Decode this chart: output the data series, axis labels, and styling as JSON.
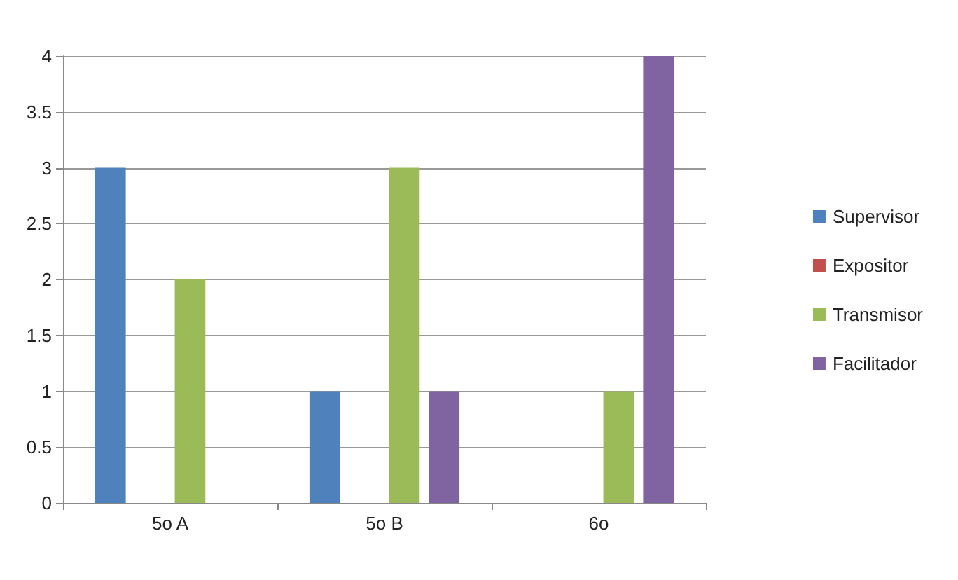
{
  "chart_data": {
    "type": "bar",
    "categories": [
      "5o A",
      "5o B",
      "6o"
    ],
    "series": [
      {
        "name": "Supervisor",
        "color": "#4f81bd",
        "values": [
          3,
          1,
          0
        ]
      },
      {
        "name": "Expositor",
        "color": "#c0504d",
        "values": [
          0,
          0,
          0
        ]
      },
      {
        "name": "Transmisor",
        "color": "#9bbb59",
        "values": [
          2,
          3,
          1
        ]
      },
      {
        "name": "Facilitador",
        "color": "#8064a2",
        "values": [
          0,
          1,
          4
        ]
      }
    ],
    "ylim": [
      0,
      4
    ],
    "yticks": [
      0,
      0.5,
      1,
      1.5,
      2,
      2.5,
      3,
      3.5,
      4
    ],
    "grid": "y",
    "legend": "right"
  }
}
